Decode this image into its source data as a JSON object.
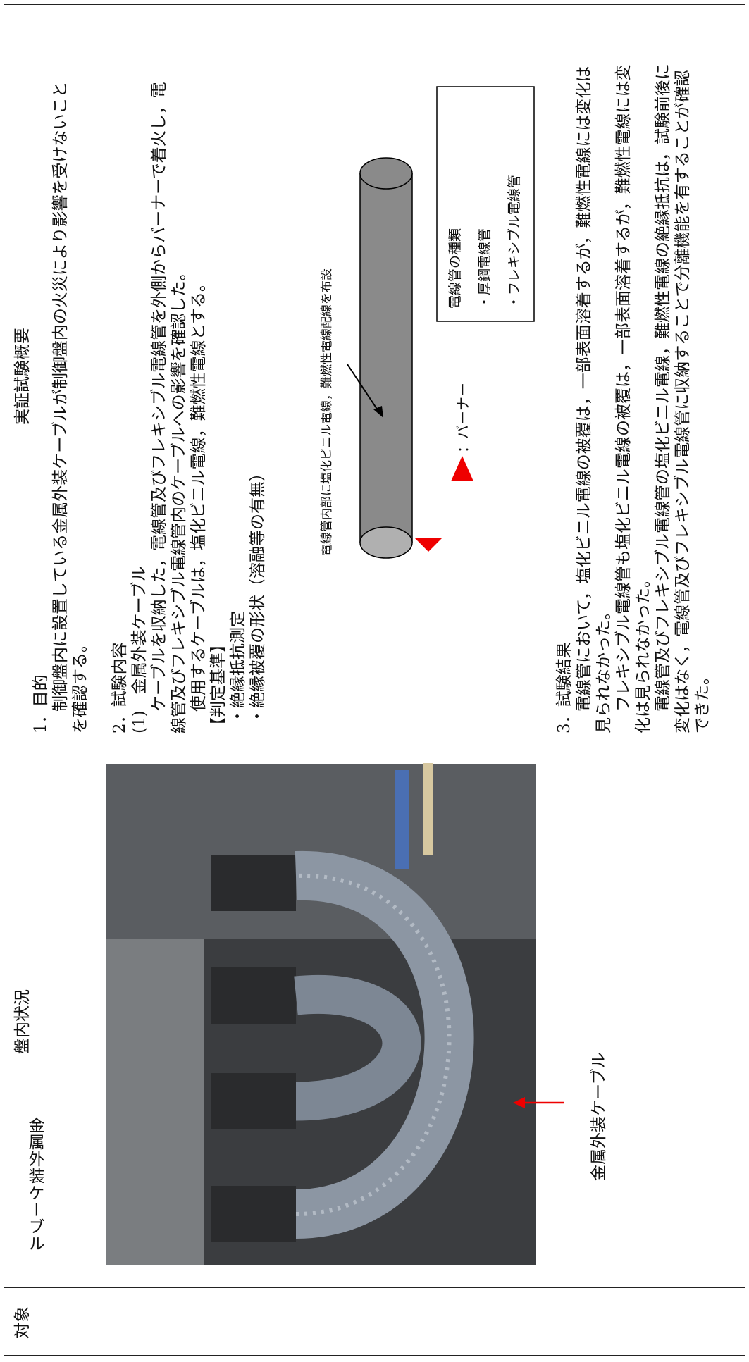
{
  "table": {
    "headers": [
      "対象",
      "盤内状況",
      "実証試験概要"
    ],
    "target": "金属外装ケーブル",
    "photo_caption": "金属外装ケーブル",
    "overview": {
      "lines": [
        "1．目的",
        "制御盤内に設置している金属外装ケーブルが制御盤内の火災により影響を受けないこと",
        "を確認する。",
        "2．試験内容",
        "(1)　金属外装ケーブル",
        "ケーブルを収納した，電線管及びフレキシブル電線管を外側からバーナーで着火し，電",
        "線管及びフレキシブル電線管内のケーブルへの影響を確認した。",
        "使用するケーブルは，塩化ビニル電線，難燃性電線とする。",
        "【判定基準】",
        "・絶縁抵抗測定",
        "・絶縁被覆の形状（溶融等の有無）"
      ],
      "diagram": {
        "pipe_label": "電線管内部に塩化ビニル電線，難燃性電線配線を布設",
        "burner_label": "：バーナー",
        "pipe_types": [
          "電線管の種類",
          "・厚鋼電線管",
          "・フレキシブル電線管"
        ]
      },
      "result_lines": [
        "3．試験結果",
        "電線管において，塩化ビニル電線の被覆は，一部表面溶着するが，難燃性電線には変化は",
        "見られなかった。",
        "フレキシブル電線管も塩化ビニル電線の被覆は，一部表面溶着するが，難燃性電線には変",
        "化は見られなかった。",
        "電線管及びフレキシブル電線管の塩化ビニル電線，難燃性電線の絶縁抵抗は，試験前後に",
        "変化はなく，電線管及びフレキシブル電線管に収納することで分離機能を有することが確認",
        "できた。"
      ]
    }
  }
}
